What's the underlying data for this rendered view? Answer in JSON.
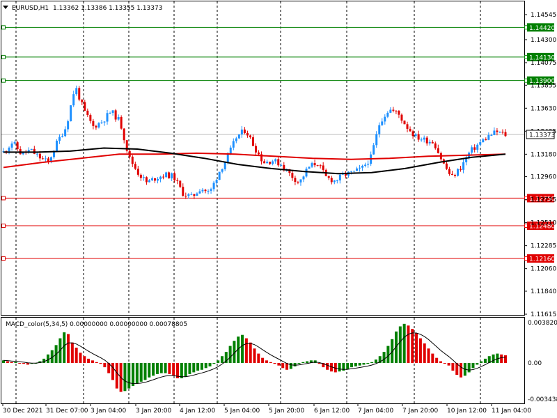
{
  "header": {
    "symbol_timeframe": "EURUSD,H1",
    "ohlc": "1.13362 1.13386 1.13355 1.13373"
  },
  "price_scale": {
    "labels": [
      "1.14545",
      "1.14300",
      "1.14075",
      "1.13855",
      "1.13630",
      "1.13405",
      "1.13180",
      "1.12960",
      "1.12735",
      "1.12510",
      "1.12285",
      "1.12060",
      "1.11840",
      "1.11615"
    ],
    "values": [
      1.14545,
      1.143,
      1.14075,
      1.13855,
      1.1363,
      1.13405,
      1.1318,
      1.1296,
      1.12735,
      1.1251,
      1.12285,
      1.1206,
      1.1184,
      1.11615
    ]
  },
  "current_price": {
    "label": "1.13373",
    "value": 1.13373
  },
  "levels": [
    {
      "label": "1.14420",
      "value": 1.1442,
      "color": "#008000",
      "kind": "resistance"
    },
    {
      "label": "1.14130",
      "value": 1.1413,
      "color": "#008000",
      "kind": "resistance"
    },
    {
      "label": "1.13900",
      "value": 1.139,
      "color": "#008000",
      "kind": "resistance"
    },
    {
      "label": "1.12750",
      "value": 1.1275,
      "color": "#e00000",
      "kind": "support"
    },
    {
      "label": "1.12480",
      "value": 1.1248,
      "color": "#e00000",
      "kind": "support"
    },
    {
      "label": "1.12160",
      "value": 1.1216,
      "color": "#e00000",
      "kind": "support"
    }
  ],
  "macd": {
    "title": "MACD_color(5,34,5) 0.00000000 0.00000000 0.00078805",
    "scale_labels": [
      "0.0038205",
      "0.00",
      "-0.003438"
    ],
    "scale_values": [
      0.0038205,
      0.0,
      -0.003438
    ]
  },
  "time_axis": {
    "labels": [
      "30 Dec 2021",
      "31 Dec 07:00",
      "3 Jan 04:00",
      "3 Jan 20:00",
      "4 Jan 12:00",
      "5 Jan 04:00",
      "5 Jan 20:00",
      "6 Jan 12:00",
      "7 Jan 04:00",
      "7 Jan 20:00",
      "10 Jan 12:00",
      "11 Jan 04:00"
    ]
  },
  "colors": {
    "bull": "#1e90ff",
    "bear": "#e00000",
    "ma_red": "#e00000",
    "ma_black": "#000000",
    "macd_pos": "#008000",
    "macd_neg": "#e00000",
    "grid": "#000000"
  },
  "chart_data": {
    "type": "candlestick",
    "series": [
      {
        "name": "EURUSD,H1",
        "kind": "ohlc",
        "anchor_closes": [
          1.132,
          1.133,
          1.1318,
          1.1322,
          1.1315,
          1.131,
          1.133,
          1.1345,
          1.1385,
          1.136,
          1.1345,
          1.135,
          1.136,
          1.135,
          1.1315,
          1.13,
          1.129,
          1.1295,
          1.1298,
          1.1296,
          1.128,
          1.1276,
          1.1285,
          1.128,
          1.13,
          1.1315,
          1.1335,
          1.1342,
          1.1325,
          1.131,
          1.1312,
          1.1308,
          1.1298,
          1.129,
          1.1305,
          1.131,
          1.1295,
          1.1292,
          1.1298,
          1.13,
          1.1304,
          1.1315,
          1.135,
          1.1362,
          1.1358,
          1.1345,
          1.1335,
          1.1332,
          1.133,
          1.131,
          1.1295,
          1.1305,
          1.132,
          1.1328,
          1.1335,
          1.134,
          1.1337
        ]
      },
      {
        "name": "MA red",
        "kind": "line",
        "values": [
          1.1305,
          1.131,
          1.1314,
          1.1318,
          1.1318,
          1.1319,
          1.1318,
          1.1316,
          1.1314,
          1.1313,
          1.1314,
          1.1316,
          1.1317,
          1.1318
        ]
      },
      {
        "name": "MA black",
        "kind": "line",
        "values": [
          1.132,
          1.132,
          1.1321,
          1.1324,
          1.1323,
          1.1319,
          1.1314,
          1.1308,
          1.1304,
          1.1301,
          1.1299,
          1.13,
          1.1304,
          1.131,
          1.1315,
          1.1318
        ]
      }
    ],
    "macd_histogram": [
      3,
      2,
      1,
      1,
      0,
      -1,
      -2,
      -1,
      0,
      2,
      5,
      10,
      15,
      21,
      29,
      36,
      34,
      24,
      18,
      12,
      8,
      5,
      3,
      1,
      -1,
      -5,
      -12,
      -20,
      -30,
      -34,
      -33,
      -30,
      -27,
      -24,
      -22,
      -20,
      -17,
      -15,
      -13,
      -12,
      -12,
      -13,
      -15,
      -18,
      -18,
      -16,
      -13,
      -11,
      -9,
      -8,
      -6,
      -4,
      -1,
      3,
      8,
      13,
      20,
      26,
      31,
      33,
      29,
      24,
      17,
      11,
      6,
      3,
      1,
      -1,
      -3,
      -6,
      -8,
      -7,
      -4,
      -1,
      1,
      2,
      3,
      3,
      -1,
      -5,
      -8,
      -10,
      -11,
      -10,
      -9,
      -7,
      -5,
      -4,
      -3,
      -2,
      -1,
      1,
      4,
      8,
      13,
      20,
      28,
      37,
      43,
      46,
      44,
      40,
      35,
      29,
      23,
      17,
      11,
      6,
      2,
      0,
      -3,
      -9,
      -14,
      -17,
      -15,
      -11,
      -6,
      -2,
      2,
      5,
      8,
      10,
      11,
      10,
      9
    ]
  }
}
